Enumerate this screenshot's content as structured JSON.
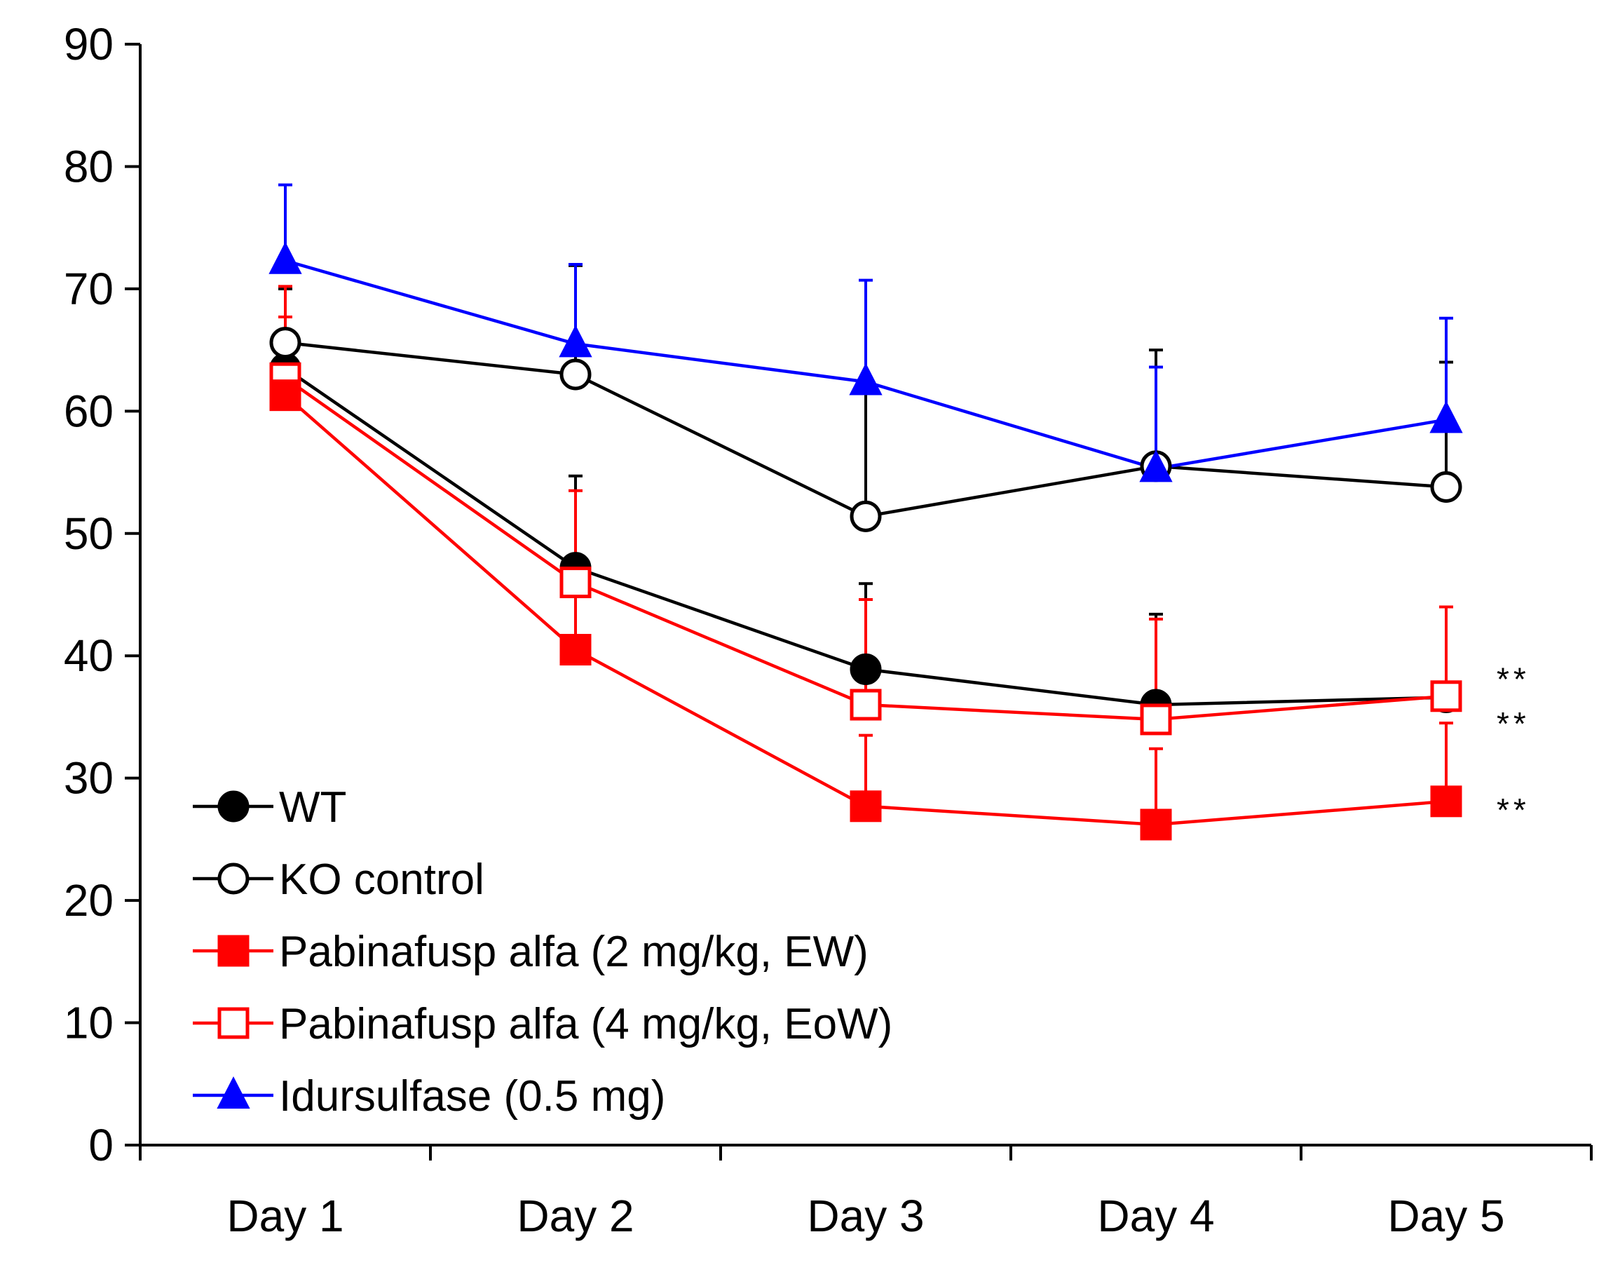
{
  "chart_data": {
    "type": "line",
    "title": "",
    "xlabel": "",
    "ylabel": "",
    "categories": [
      "Day 1",
      "Day 2",
      "Day 3",
      "Day 4",
      "Day 5"
    ],
    "ylim": [
      0,
      90
    ],
    "yticks": [
      "0",
      "10",
      "20",
      "30",
      "40",
      "50",
      "60",
      "70",
      "80",
      "90"
    ],
    "grid": false,
    "legend_position": "bottom-left",
    "series": [
      {
        "name": "WT",
        "color": "#000000",
        "marker": "filled-circle",
        "values": [
          63.5,
          47.2,
          38.9,
          36.0,
          36.6
        ],
        "errors": [
          6.5,
          7.5,
          7.0,
          7.4,
          7.4
        ]
      },
      {
        "name": "KO control",
        "color": "#000000",
        "marker": "open-circle",
        "values": [
          65.6,
          63.0,
          51.4,
          55.5,
          53.8
        ],
        "errors": [
          4.4,
          8.9,
          10.2,
          9.5,
          10.2
        ]
      },
      {
        "name": "Pabinafusp alfa (2 mg/kg, EW)",
        "color": "#ff0000",
        "marker": "filled-square",
        "values": [
          61.3,
          40.5,
          27.7,
          26.2,
          28.1
        ],
        "errors": [
          6.4,
          7.0,
          5.8,
          6.2,
          6.4
        ]
      },
      {
        "name": "Pabinafusp alfa (4 mg/kg, EoW)",
        "color": "#ff0000",
        "marker": "open-square",
        "values": [
          62.7,
          46.0,
          36.0,
          34.8,
          36.7
        ],
        "errors": [
          7.5,
          7.5,
          8.6,
          8.2,
          7.3
        ]
      },
      {
        "name": "Idursulfase (0.5 mg)",
        "color": "#0000ff",
        "marker": "filled-triangle",
        "values": [
          72.3,
          65.5,
          62.4,
          55.3,
          59.3
        ],
        "errors": [
          6.2,
          6.5,
          8.3,
          8.3,
          8.3
        ]
      }
    ],
    "annotations": [
      {
        "text": "**",
        "series": "WT",
        "category": "Day 5"
      },
      {
        "text": "**",
        "series": "Pabinafusp alfa (4 mg/kg, EoW)",
        "category": "Day 5"
      },
      {
        "text": "**",
        "series": "Pabinafusp alfa (2 mg/kg, EW)",
        "category": "Day 5"
      }
    ]
  }
}
